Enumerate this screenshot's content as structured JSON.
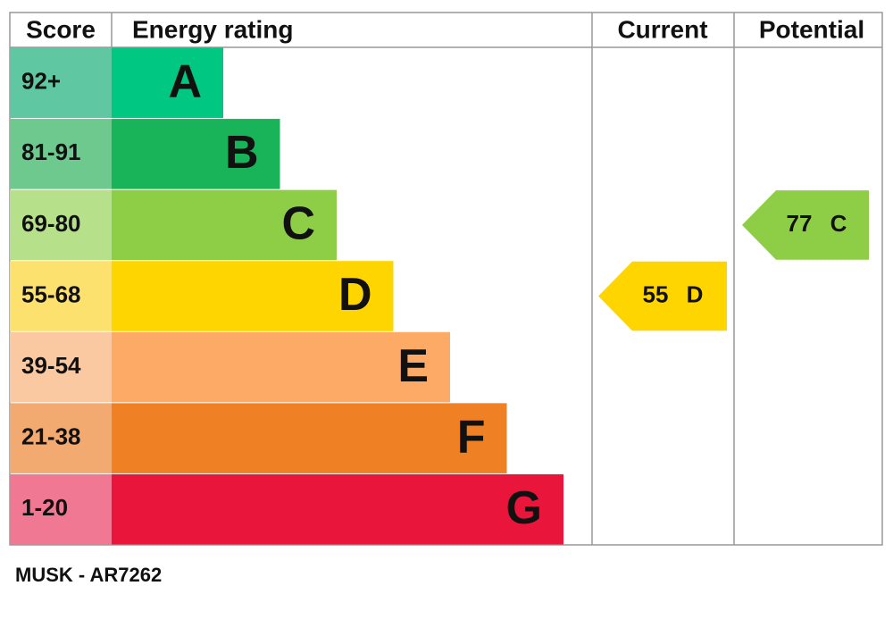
{
  "header": {
    "score": "Score",
    "rating": "Energy rating",
    "current": "Current",
    "potential": "Potential"
  },
  "bands": [
    {
      "score": "92+",
      "letter": "A",
      "color": "#00c781",
      "score_color": "#5fc8a2"
    },
    {
      "score": "81-91",
      "letter": "B",
      "color": "#19b459",
      "score_color": "#6ec98f"
    },
    {
      "score": "69-80",
      "letter": "C",
      "color": "#8dce46",
      "score_color": "#b6e08a"
    },
    {
      "score": "55-68",
      "letter": "D",
      "color": "#ffd500",
      "score_color": "#fde16e"
    },
    {
      "score": "39-54",
      "letter": "E",
      "color": "#fcaa65",
      "score_color": "#fbc9a1"
    },
    {
      "score": "21-38",
      "letter": "F",
      "color": "#ef8023",
      "score_color": "#f2aa70"
    },
    {
      "score": "1-20",
      "letter": "G",
      "color": "#e9153b",
      "score_color": "#f07892"
    }
  ],
  "current": {
    "value": 55,
    "letter": "D"
  },
  "potential": {
    "value": 77,
    "letter": "C"
  },
  "footer": "MUSK - AR7262"
}
